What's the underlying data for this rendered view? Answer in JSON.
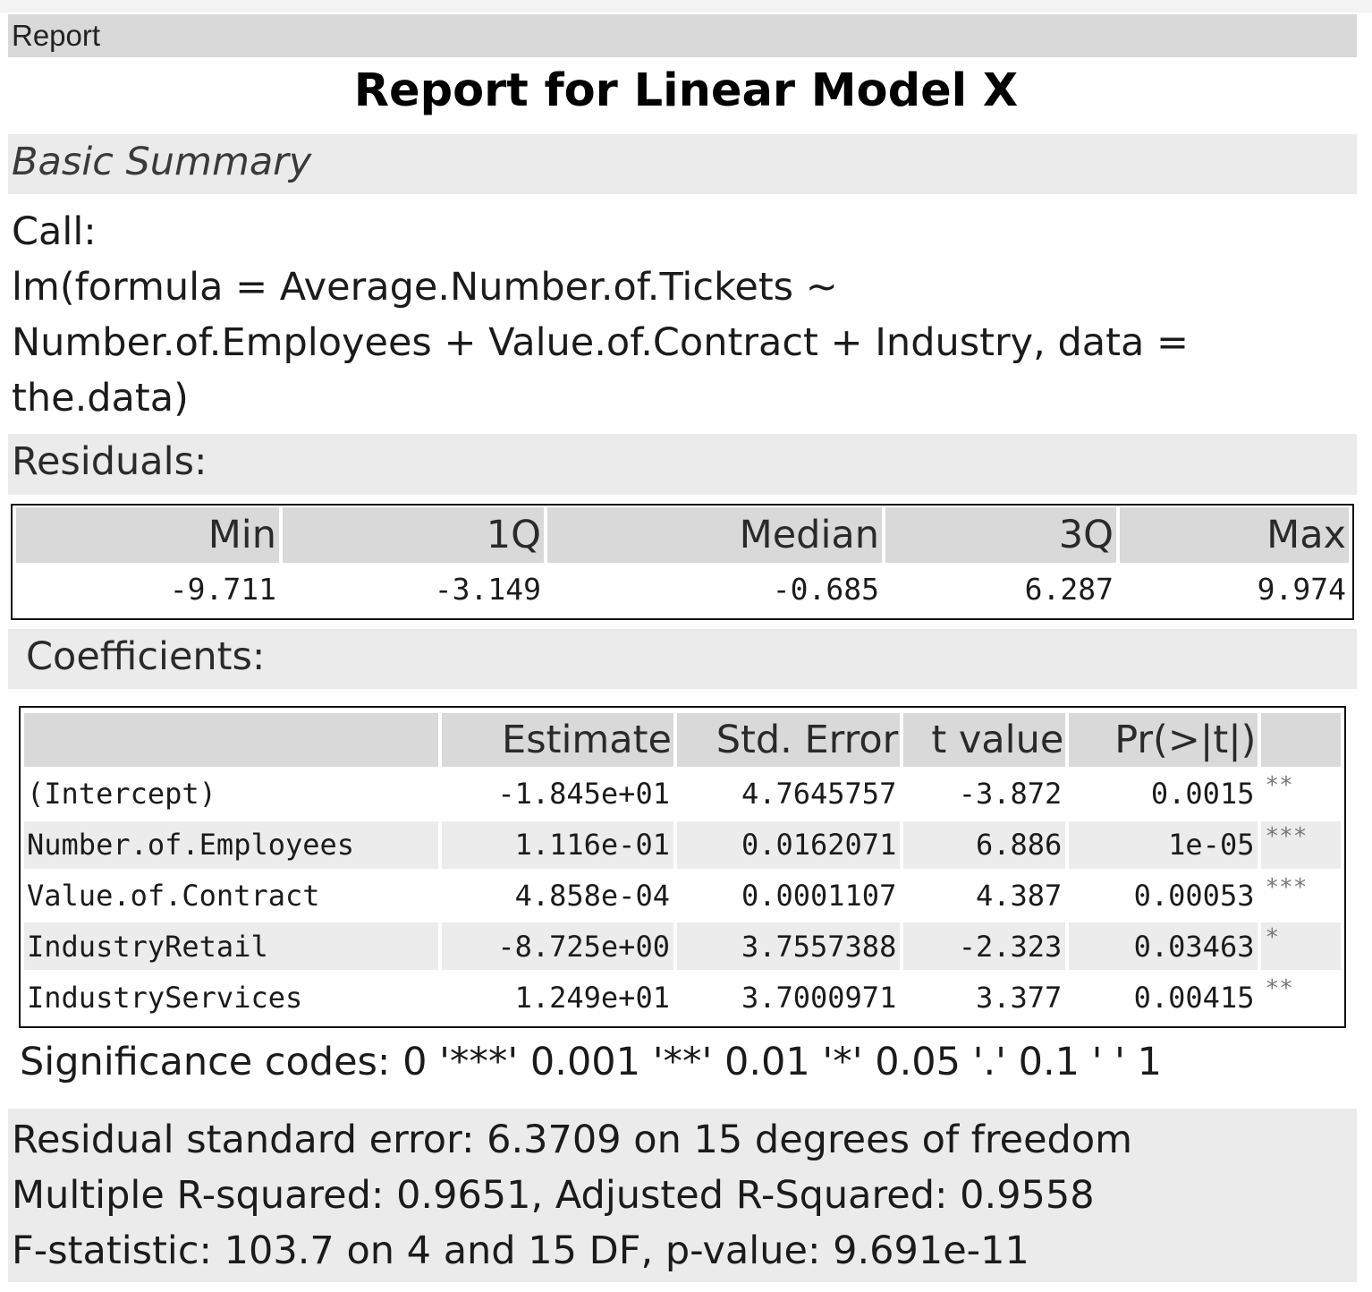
{
  "tab_label": "Report",
  "title": "Report for Linear Model X",
  "basic_summary_label": "Basic Summary",
  "call": {
    "label": "Call:",
    "lines": [
      "lm(formula = Average.Number.of.Tickets ~",
      "Number.of.Employees + Value.of.Contract + Industry, data =",
      "the.data)"
    ]
  },
  "residuals": {
    "label": "Residuals:",
    "headers": [
      "Min",
      "1Q",
      "Median",
      "3Q",
      "Max"
    ],
    "values": [
      "-9.711",
      "-3.149",
      "-0.685",
      "6.287",
      "9.974"
    ]
  },
  "coefficients": {
    "label": "Coefficients:",
    "headers": [
      "",
      "Estimate",
      "Std. Error",
      "t value",
      "Pr(>|t|)",
      ""
    ],
    "rows": [
      {
        "name": "(Intercept)",
        "estimate": "-1.845e+01",
        "std_error": "4.7645757",
        "t_value": "-3.872",
        "p_value": "0.0015",
        "signif": "**"
      },
      {
        "name": "Number.of.Employees",
        "estimate": "1.116e-01",
        "std_error": "0.0162071",
        "t_value": "6.886",
        "p_value": "1e-05",
        "signif": "***"
      },
      {
        "name": "Value.of.Contract",
        "estimate": "4.858e-04",
        "std_error": "0.0001107",
        "t_value": "4.387",
        "p_value": "0.00053",
        "signif": "***"
      },
      {
        "name": "IndustryRetail",
        "estimate": "-8.725e+00",
        "std_error": "3.7557388",
        "t_value": "-2.323",
        "p_value": "0.03463",
        "signif": "*"
      },
      {
        "name": "IndustryServices",
        "estimate": "1.249e+01",
        "std_error": "3.7000971",
        "t_value": "3.377",
        "p_value": "0.00415",
        "signif": "**"
      }
    ]
  },
  "significance_codes": "Significance codes: 0 '***' 0.001 '**' 0.01 '*' 0.05 '.' 0.1 ' ' 1",
  "stats": {
    "residual_se": "Residual standard error: 6.3709 on 15 degrees of freedom",
    "r_squared": "Multiple R-squared: 0.9651, Adjusted R-Squared: 0.9558",
    "f_statistic": "F-statistic: 103.7 on 4 and 15 DF, p-value: 9.691e-11"
  }
}
